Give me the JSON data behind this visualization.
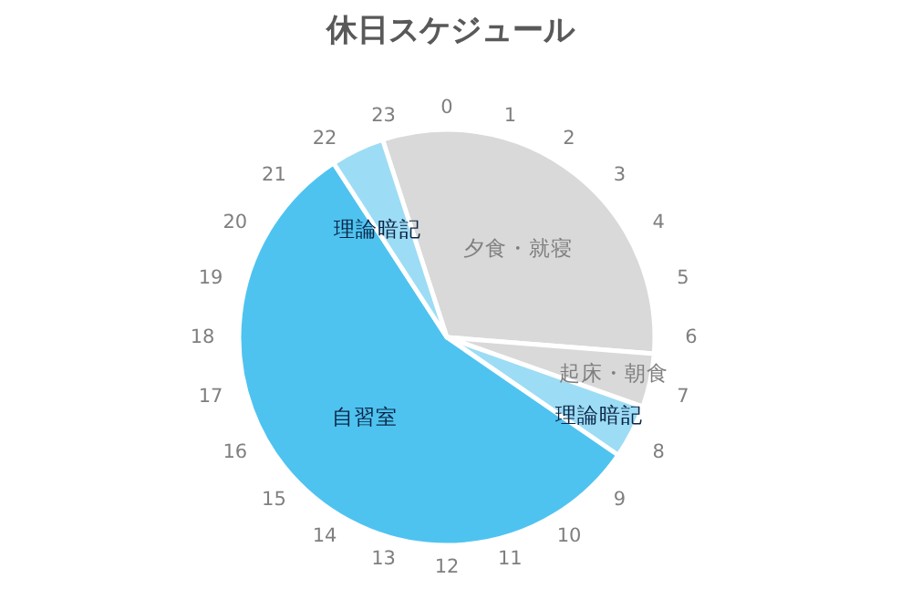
{
  "chart_data": {
    "type": "pie",
    "title": "休日スケジュール",
    "categories": [
      "夕食・就寝",
      "起床・朝食",
      "理論暗記",
      "自習室",
      "理論暗記"
    ],
    "values": [
      31.25,
      4.17,
      4.17,
      56.24,
      4.17
    ],
    "data_labels": false,
    "colors": [
      "#d9d9d9",
      "#d9d9d9",
      "#9ddcf5",
      "#4fc3f0",
      "#9ddcf5"
    ],
    "annotations": [
      "0",
      "1",
      "2",
      "3",
      "4",
      "5",
      "6",
      "7",
      "8",
      "9",
      "10",
      "11",
      "12",
      "13",
      "14",
      "15",
      "16",
      "17",
      "18",
      "19",
      "20",
      "21",
      "22",
      "23"
    ]
  }
}
